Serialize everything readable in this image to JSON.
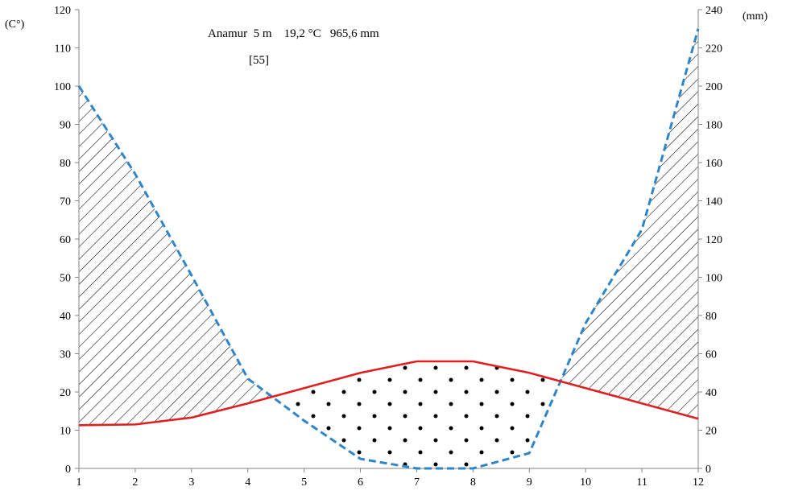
{
  "chart_data": {
    "type": "line",
    "title": "Anamur  5 m    19,2 °C   965,6 mm",
    "subtitle": "[55]",
    "ylabel_left": "(C°)",
    "ylabel_right": "(mm)",
    "x": [
      1,
      2,
      3,
      4,
      5,
      6,
      7,
      8,
      9,
      10,
      11,
      12
    ],
    "xlim": [
      1,
      12
    ],
    "ylim_left": [
      0,
      120
    ],
    "ylim_right": [
      0,
      240
    ],
    "yticks_left": [
      0,
      10,
      20,
      30,
      40,
      50,
      60,
      70,
      80,
      90,
      100,
      110,
      120
    ],
    "yticks_right": [
      0,
      20,
      40,
      60,
      80,
      100,
      120,
      140,
      160,
      180,
      200,
      220,
      240
    ],
    "grid": false,
    "series": [
      {
        "axis": "left",
        "color": "#e02020",
        "style": "solid",
        "values": [
          11.3,
          11.5,
          13.3,
          17,
          21,
          25,
          28,
          28,
          25,
          21,
          17,
          13
        ]
      },
      {
        "axis": "right",
        "color": "#2e86c8",
        "style": "dashed",
        "values": [
          200,
          154,
          101,
          47,
          25,
          5,
          0,
          0,
          8,
          76,
          125,
          230
        ]
      }
    ],
    "fill_patterns": {
      "humid_period": "diagonal-hatch",
      "dry_period": "dots"
    }
  }
}
